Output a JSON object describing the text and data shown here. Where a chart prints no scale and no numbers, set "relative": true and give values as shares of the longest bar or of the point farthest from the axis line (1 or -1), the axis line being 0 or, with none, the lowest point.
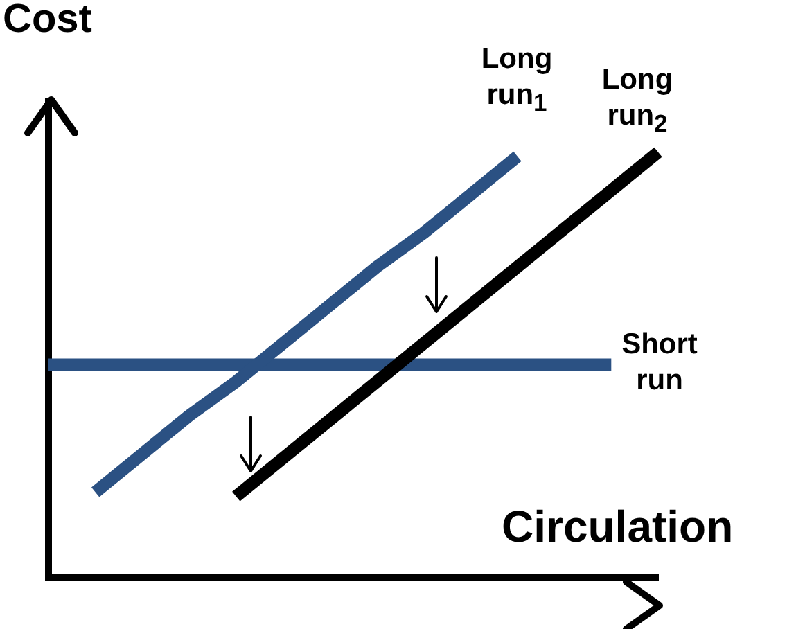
{
  "chart_data": {
    "type": "line",
    "relative": true,
    "xlabel": "Circulation",
    "ylabel": "Cost",
    "legend": false,
    "marker": "none",
    "categories": [
      null,
      null,
      null,
      null,
      null,
      null,
      null,
      null,
      null,
      null,
      null,
      null,
      null,
      null
    ],
    "series": [
      {
        "name": "Long run$_{1}$",
        "color": "#2b5183",
        "values": [
          null,
          0.2,
          0.29,
          0.38,
          0.46,
          0.55,
          0.64,
          0.73,
          0.81,
          0.9,
          0.99,
          null,
          null,
          null
        ]
      },
      {
        "name": "Long run$_{2}$",
        "color": "#000000",
        "values": [
          null,
          null,
          null,
          null,
          0.19,
          0.28,
          0.37,
          0.46,
          0.55,
          0.64,
          0.73,
          0.82,
          0.91,
          1
        ]
      },
      {
        "name": "Short run",
        "color": "#2b5183",
        "values": [
          0.5,
          0.5,
          0.5,
          0.5,
          0.5,
          0.5,
          0.5,
          0.5,
          0.5,
          0.5,
          0.5,
          0.5,
          0.5,
          null
        ]
      }
    ]
  }
}
